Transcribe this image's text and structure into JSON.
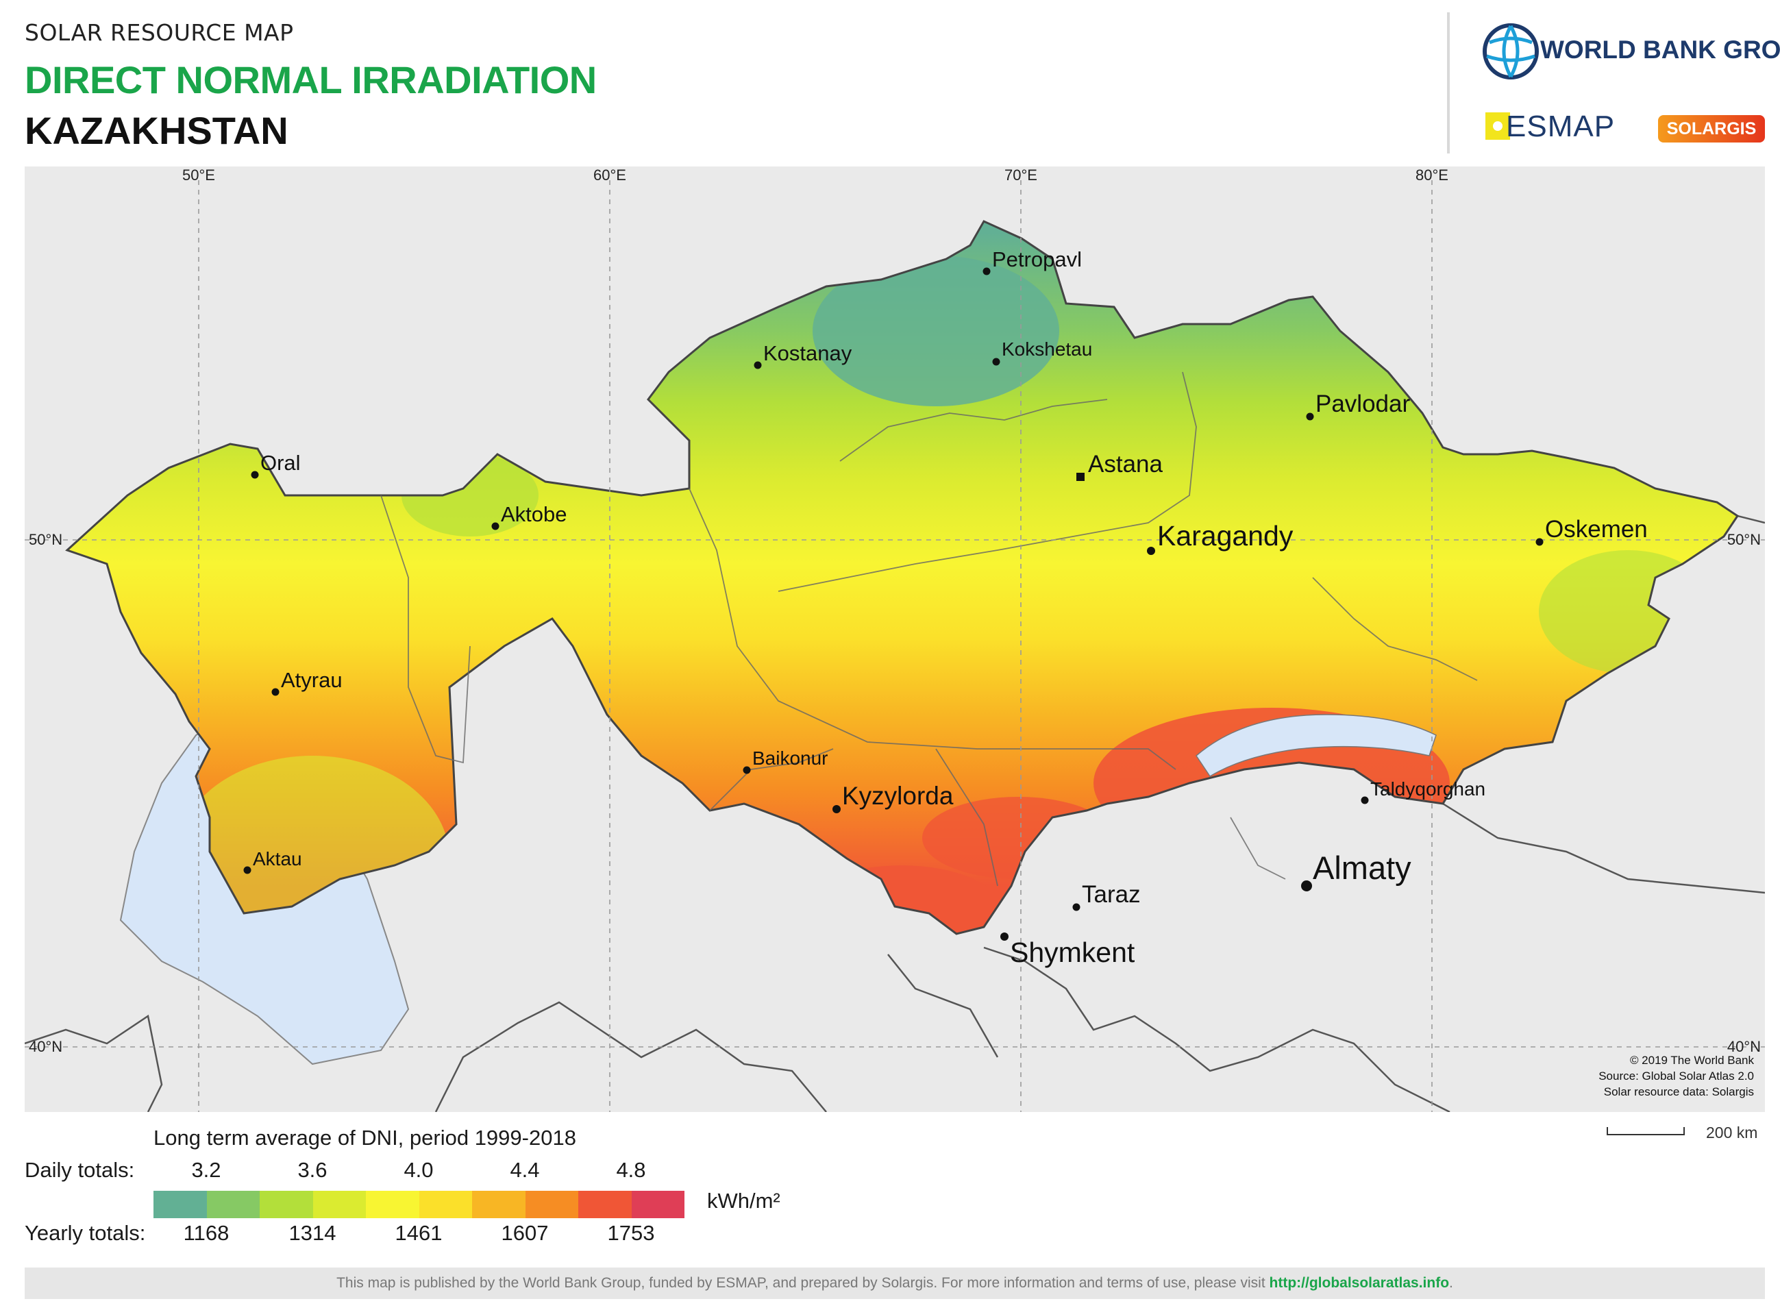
{
  "header": {
    "supertitle": "SOLAR RESOURCE MAP",
    "title": "DIRECT NORMAL IRRADIATION",
    "country": "KAZAKHSTAN"
  },
  "logos": {
    "world_bank": "WORLD BANK GROUP",
    "esmap": "ESMAP",
    "solargis": "SOLARGIS"
  },
  "map": {
    "longitude_ticks": [
      "50°E",
      "60°E",
      "70°E",
      "80°E"
    ],
    "latitude_ticks": [
      "50°N",
      "40°N"
    ],
    "cities": [
      "Petropavl",
      "Kostanay",
      "Kokshetau",
      "Pavlodar",
      "Oral",
      "Astana",
      "Aktobe",
      "Karagandy",
      "Oskemen",
      "Atyrau",
      "Baikonur",
      "Kyzylorda",
      "Taldyqorghan",
      "Aktau",
      "Almaty",
      "Taraz",
      "Shymkent"
    ],
    "capital": "Astana",
    "credits": [
      "© 2019 The World Bank",
      "Source: Global Solar Atlas 2.0",
      "Solar resource data: Solargis"
    ]
  },
  "legend": {
    "title": "Long term average of DNI, period 1999-2018",
    "daily_label": "Daily totals:",
    "yearly_label": "Yearly totals:",
    "daily_values": [
      "3.2",
      "3.6",
      "4.0",
      "4.4",
      "4.8"
    ],
    "yearly_values": [
      "1168",
      "1314",
      "1461",
      "1607",
      "1753"
    ],
    "unit": "kWh/m²",
    "colors": [
      "#62b094",
      "#86c964",
      "#b3df3a",
      "#dbeb30",
      "#f8f532",
      "#fbe02a",
      "#f8b624",
      "#f68d23",
      "#f05636",
      "#df3e56"
    ]
  },
  "scale": {
    "label": "200 km"
  },
  "footer": {
    "text": "This map is published by the World Bank Group, funded by ESMAP, and prepared by Solargis. For more information and terms of use, please visit ",
    "link": "http://globalsolaratlas.info",
    "end": "."
  }
}
